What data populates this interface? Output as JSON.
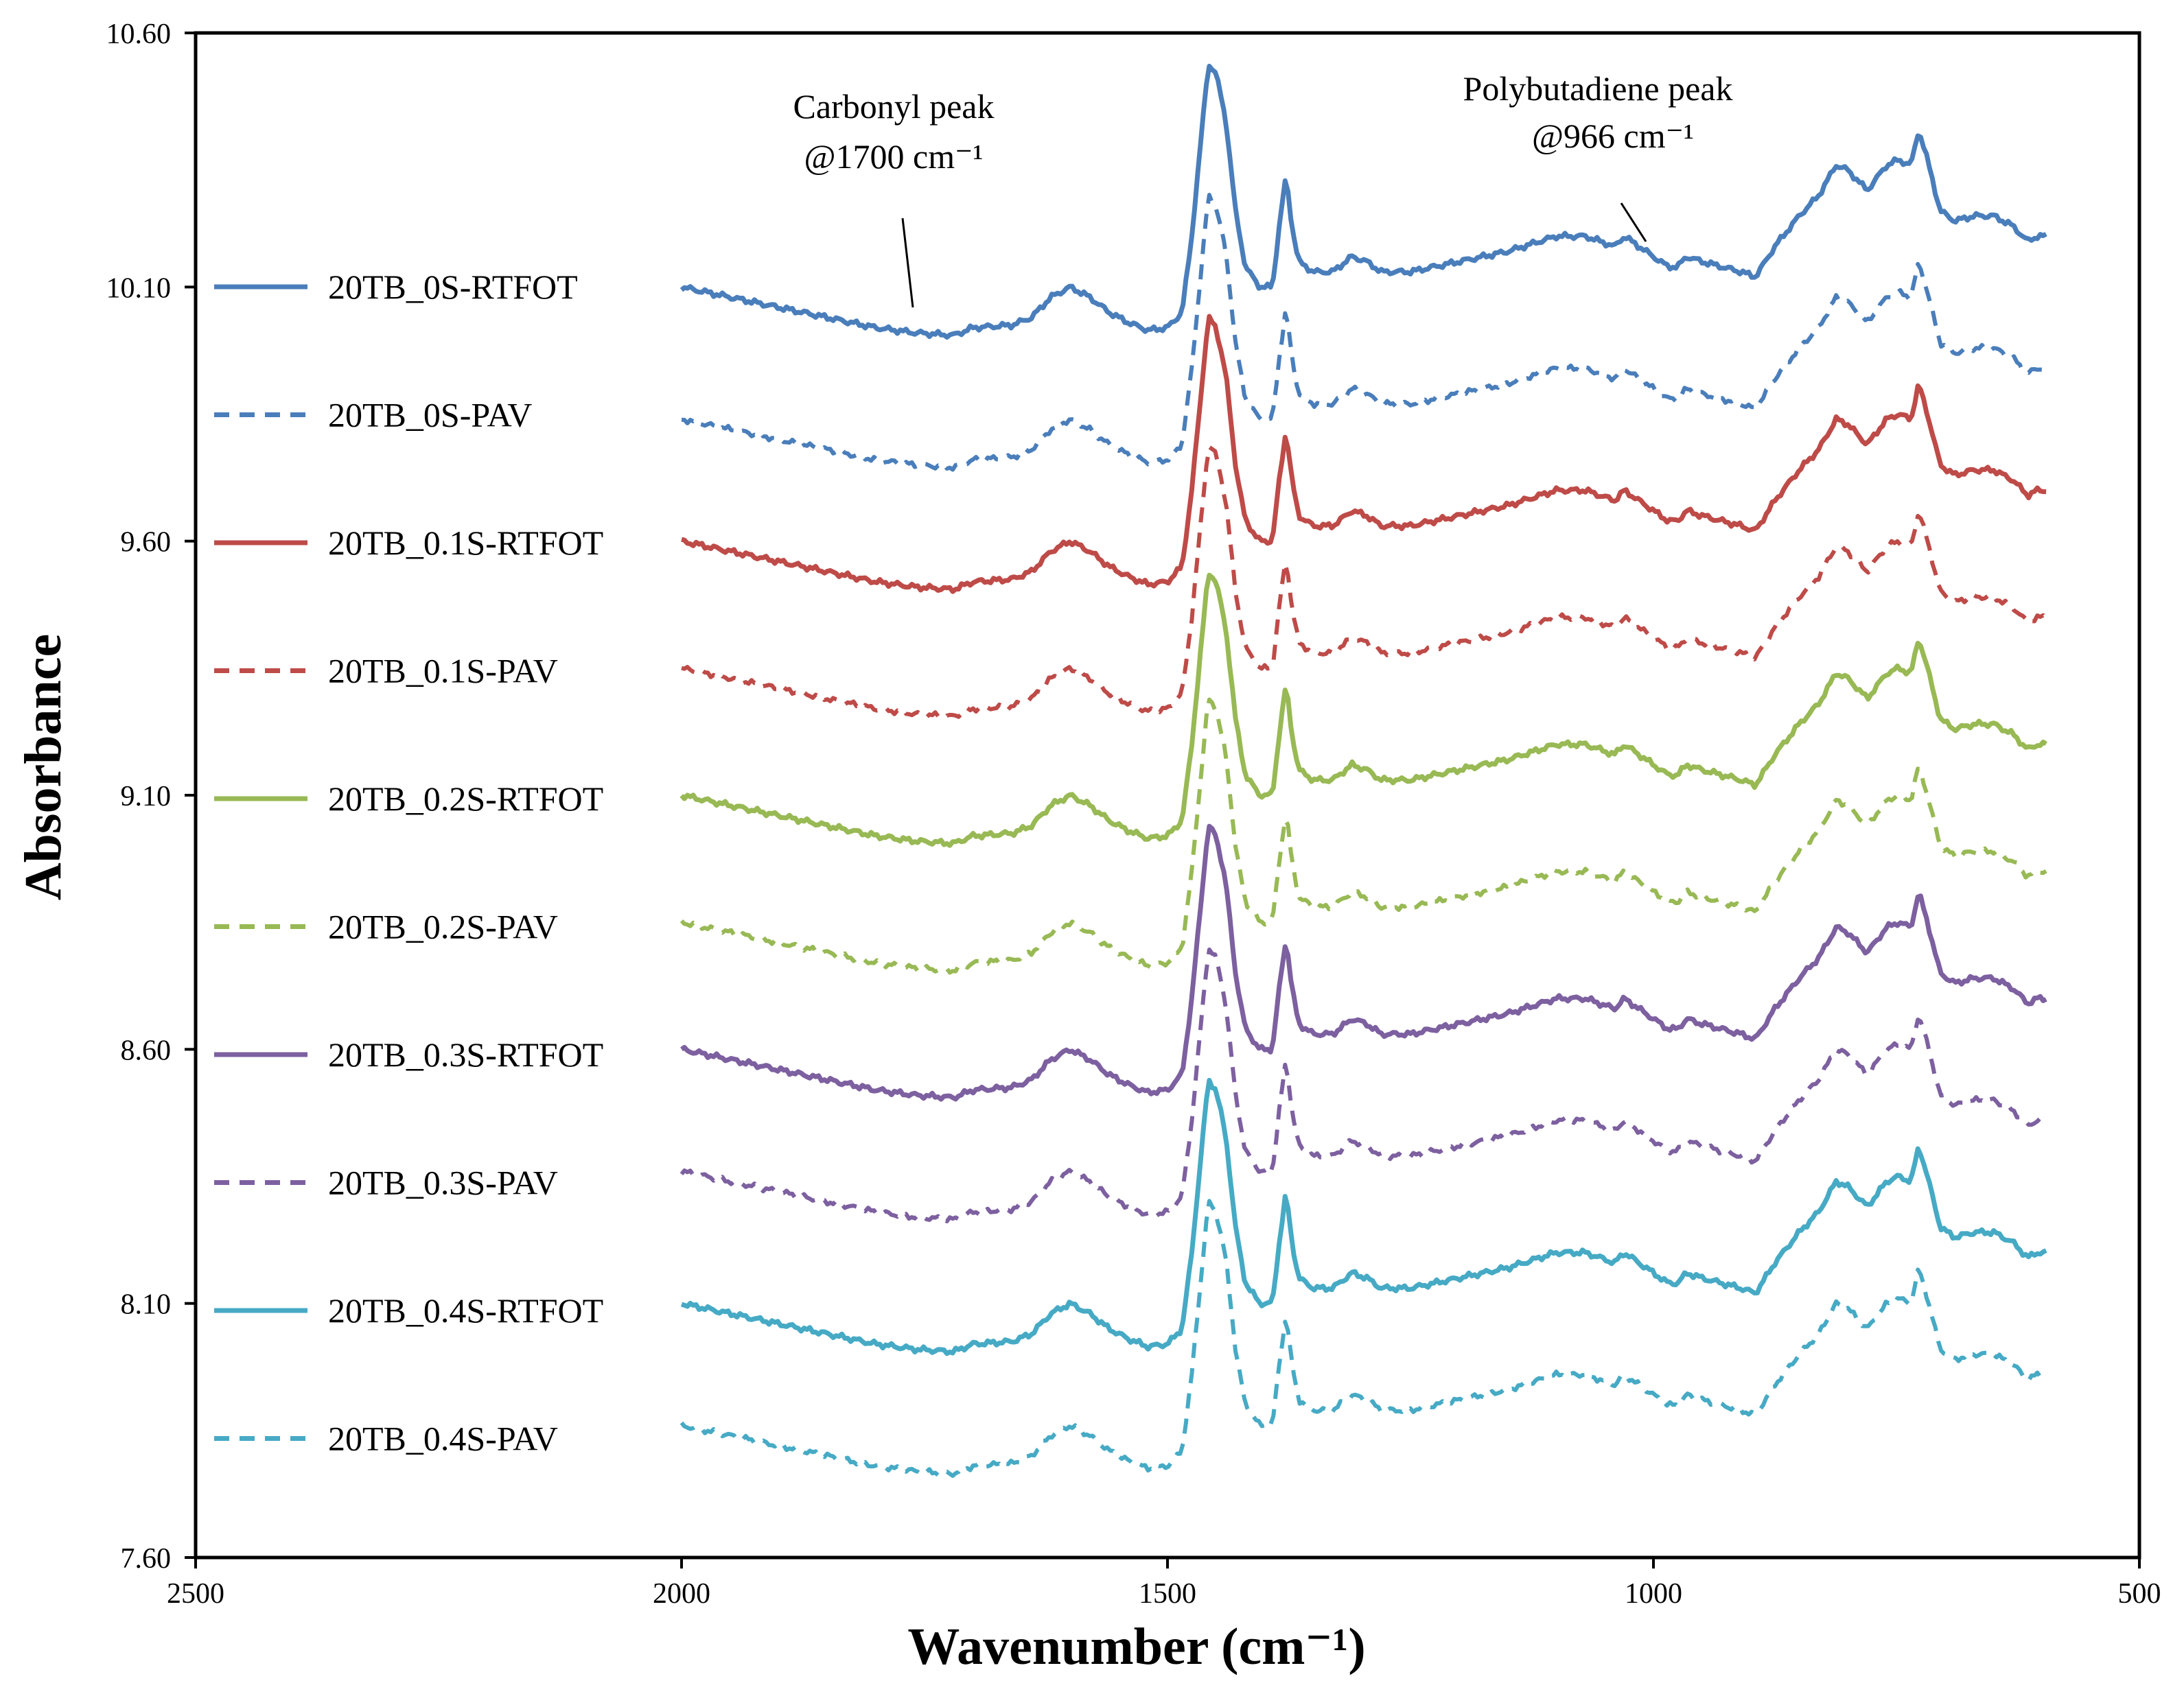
{
  "chart_data": {
    "type": "line",
    "title": "",
    "xlabel": "Wavenumber (cm⁻¹)",
    "ylabel": "Absorbance",
    "xlim": [
      2500,
      500
    ],
    "ylim": [
      7.6,
      10.6
    ],
    "x_ticks": [
      2500,
      2000,
      1500,
      1000,
      500
    ],
    "y_ticks": [
      "10.60",
      "10.10",
      "9.60",
      "9.10",
      "8.60",
      "8.10",
      "7.60"
    ],
    "legend_position": "left",
    "annotations": [
      {
        "line1": "Carbonyl peak",
        "line2": "@1700 cm⁻¹",
        "x": 1700
      },
      {
        "line1": "Polybutadiene peak",
        "line2": "@966 cm⁻¹",
        "x": 966
      }
    ],
    "profile": [
      [
        2000,
        0.0
      ],
      [
        1950,
        -0.02
      ],
      [
        1900,
        -0.04
      ],
      [
        1850,
        -0.06
      ],
      [
        1800,
        -0.08
      ],
      [
        1760,
        -0.09
      ],
      [
        1720,
        -0.095
      ],
      [
        1700,
        -0.08
      ],
      [
        1660,
        -0.075
      ],
      [
        1640,
        -0.06
      ],
      [
        1620,
        -0.02
      ],
      [
        1600,
        0.0
      ],
      [
        1580,
        -0.02
      ],
      [
        1560,
        -0.05
      ],
      [
        1540,
        -0.07
      ],
      [
        1520,
        -0.085
      ],
      [
        1500,
        -0.08
      ],
      [
        1485,
        -0.05
      ],
      [
        1475,
        0.1
      ],
      [
        1465,
        0.3
      ],
      [
        1458,
        0.44
      ],
      [
        1450,
        0.42
      ],
      [
        1440,
        0.33
      ],
      [
        1430,
        0.15
      ],
      [
        1420,
        0.04
      ],
      [
        1405,
        0.0
      ],
      [
        1392,
        0.0
      ],
      [
        1385,
        0.12
      ],
      [
        1378,
        0.22
      ],
      [
        1372,
        0.12
      ],
      [
        1365,
        0.05
      ],
      [
        1350,
        0.03
      ],
      [
        1330,
        0.03
      ],
      [
        1310,
        0.06
      ],
      [
        1295,
        0.05
      ],
      [
        1280,
        0.03
      ],
      [
        1250,
        0.03
      ],
      [
        1200,
        0.05
      ],
      [
        1150,
        0.07
      ],
      [
        1100,
        0.1
      ],
      [
        1070,
        0.1
      ],
      [
        1040,
        0.08
      ],
      [
        1030,
        0.1
      ],
      [
        1015,
        0.08
      ],
      [
        1000,
        0.06
      ],
      [
        985,
        0.04
      ],
      [
        975,
        0.04
      ],
      [
        966,
        0.06
      ],
      [
        950,
        0.05
      ],
      [
        930,
        0.04
      ],
      [
        910,
        0.03
      ],
      [
        895,
        0.02
      ],
      [
        875,
        0.08
      ],
      [
        850,
        0.14
      ],
      [
        830,
        0.18
      ],
      [
        812,
        0.24
      ],
      [
        800,
        0.23
      ],
      [
        780,
        0.19
      ],
      [
        760,
        0.24
      ],
      [
        748,
        0.25
      ],
      [
        735,
        0.24
      ],
      [
        727,
        0.31
      ],
      [
        718,
        0.25
      ],
      [
        705,
        0.15
      ],
      [
        690,
        0.13
      ],
      [
        670,
        0.14
      ],
      [
        650,
        0.14
      ],
      [
        630,
        0.12
      ],
      [
        615,
        0.09
      ],
      [
        605,
        0.1
      ],
      [
        595,
        0.1
      ]
    ],
    "series": [
      {
        "name": "20TB_0S-RTFOT",
        "color": "#4A7EBB",
        "dash": "solid",
        "offset": 10.1
      },
      {
        "name": "20TB_0S-PAV",
        "color": "#4A7EBB",
        "dash": "dashed",
        "offset": 9.84
      },
      {
        "name": "20TB_0.1S-RTFOT",
        "color": "#BE4B48",
        "dash": "solid",
        "offset": 9.6
      },
      {
        "name": "20TB_0.1S-PAV",
        "color": "#BE4B48",
        "dash": "dashed",
        "offset": 9.35
      },
      {
        "name": "20TB_0.2S-RTFOT",
        "color": "#98B954",
        "dash": "solid",
        "offset": 9.1
      },
      {
        "name": "20TB_0.2S-PAV",
        "color": "#98B954",
        "dash": "dashed",
        "offset": 8.85
      },
      {
        "name": "20TB_0.3S-RTFOT",
        "color": "#7D60A0",
        "dash": "solid",
        "offset": 8.6
      },
      {
        "name": "20TB_0.3S-PAV",
        "color": "#7D60A0",
        "dash": "dashed",
        "offset": 8.36
      },
      {
        "name": "20TB_0.4S-RTFOT",
        "color": "#46AAC5",
        "dash": "solid",
        "offset": 8.1
      },
      {
        "name": "20TB_0.4S-PAV",
        "color": "#46AAC5",
        "dash": "dashed",
        "offset": 7.86
      }
    ]
  }
}
